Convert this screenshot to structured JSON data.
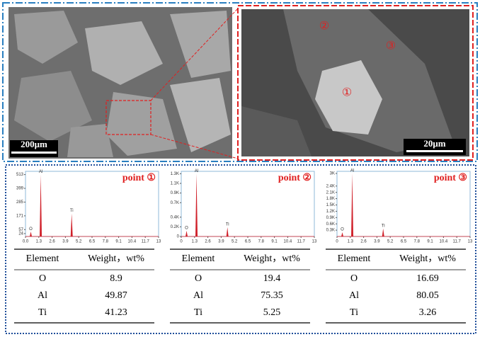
{
  "sem": {
    "left_scale": "200μm",
    "right_scale": "20μm",
    "markers": [
      "①",
      "②",
      "③"
    ]
  },
  "panels": [
    {
      "title": "point ①",
      "spectrum": {
        "type": "peaks",
        "xlim": [
          0,
          13
        ],
        "ylim": [
          0,
          540
        ],
        "xticks": [
          {
            "value": 0,
            "label": "0.0"
          },
          1.3,
          2.6,
          3.9,
          5.2,
          6.5,
          7.8,
          9.1,
          10.4,
          11.7,
          13
        ],
        "yticks": [
          24,
          57,
          171,
          285,
          399,
          513
        ],
        "peaks": [
          {
            "label": "O",
            "x": 0.52,
            "y": 40
          },
          {
            "label": "Al",
            "x": 1.49,
            "y": 513
          },
          {
            "label": "Ti",
            "x": 4.51,
            "y": 190
          }
        ],
        "color": "#d0202a"
      },
      "table": {
        "header": [
          "Element",
          "Weight，wt%"
        ],
        "rows": [
          [
            "O",
            8.9
          ],
          [
            "Al",
            49.87
          ],
          [
            "Ti",
            41.23
          ]
        ]
      }
    },
    {
      "title": "point ②",
      "spectrum": {
        "type": "peaks",
        "xlim": [
          0,
          13
        ],
        "ylim": [
          0,
          1350
        ],
        "xticks": [
          0,
          1.3,
          2.6,
          3.9,
          5.2,
          6.5,
          7.8,
          9.1,
          10.4,
          11.7,
          13
        ],
        "yticks": [
          0,
          {
            "value": 200,
            "label": "0.2K"
          },
          {
            "value": 400,
            "label": "0.4K"
          },
          {
            "value": 700,
            "label": "0.7K"
          },
          {
            "value": 900,
            "label": "0.9K"
          },
          {
            "value": 1100,
            "label": "1.1K"
          },
          {
            "value": 1300,
            "label": "1.3K"
          }
        ],
        "peaks": [
          {
            "label": "O",
            "x": 0.52,
            "y": 120
          },
          {
            "label": "Al",
            "x": 1.49,
            "y": 1300
          },
          {
            "label": "Ti",
            "x": 4.51,
            "y": 190
          }
        ],
        "color": "#d0202a"
      },
      "table": {
        "header": [
          "Element",
          "Weight，wt%"
        ],
        "rows": [
          [
            "O",
            19.4
          ],
          [
            "Al",
            75.35
          ],
          [
            "Ti",
            5.25
          ]
        ]
      }
    },
    {
      "title": "point ③",
      "spectrum": {
        "type": "peaks",
        "xlim": [
          0,
          13
        ],
        "ylim": [
          0,
          3100
        ],
        "xticks": [
          0,
          1.3,
          2.6,
          3.9,
          5.2,
          6.5,
          7.8,
          9.1,
          10.4,
          11.7,
          13
        ],
        "yticks": [
          {
            "value": 300,
            "label": "0.3K"
          },
          {
            "value": 600,
            "label": "0.6K"
          },
          {
            "value": 900,
            "label": "0.9K"
          },
          {
            "value": 1200,
            "label": "1.2K"
          },
          {
            "value": 1500,
            "label": "1.5K"
          },
          {
            "value": 1800,
            "label": "1.8K"
          },
          {
            "value": 2100,
            "label": "2.1K"
          },
          {
            "value": 2400,
            "label": "2.4K"
          },
          {
            "value": 3000,
            "label": "3K"
          }
        ],
        "peaks": [
          {
            "label": "O",
            "x": 0.52,
            "y": 200
          },
          {
            "label": "Al",
            "x": 1.49,
            "y": 3000
          },
          {
            "label": "Ti",
            "x": 4.51,
            "y": 380
          }
        ],
        "color": "#d0202a"
      },
      "table": {
        "header": [
          "Element",
          "Weight，wt%"
        ],
        "rows": [
          [
            "O",
            16.69
          ],
          [
            "Al",
            80.05
          ],
          [
            "Ti",
            3.26
          ]
        ]
      }
    }
  ]
}
